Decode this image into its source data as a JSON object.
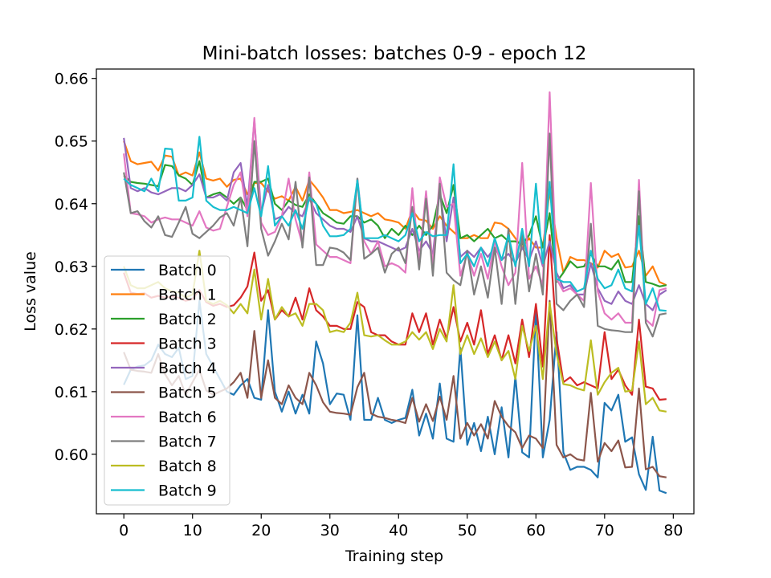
{
  "chart_data": {
    "type": "line",
    "title": "Mini-batch losses: batches 0-9 - epoch 12",
    "xlabel": "Training step",
    "ylabel": "Loss value",
    "xlim": [
      -4,
      83
    ],
    "ylim": [
      0.5905,
      0.6615
    ],
    "xticks": [
      "0",
      "10",
      "20",
      "30",
      "40",
      "50",
      "60",
      "70",
      "80"
    ],
    "yticks": [
      "0.60",
      "0.61",
      "0.62",
      "0.63",
      "0.64",
      "0.65",
      "0.66"
    ],
    "grid": false,
    "legend_position": "lower-left",
    "series": [
      {
        "name": "Batch 0",
        "color": "#1f77b4",
        "values": [
          0.6111,
          0.6135,
          0.614,
          0.6142,
          0.615,
          0.6175,
          0.616,
          0.6155,
          0.617,
          0.612,
          0.6125,
          0.6245,
          0.616,
          0.614,
          0.612,
          0.61,
          0.6095,
          0.611,
          0.612,
          0.609,
          0.6087,
          0.623,
          0.61,
          0.6068,
          0.61,
          0.6065,
          0.6095,
          0.6065,
          0.618,
          0.6145,
          0.608,
          0.6097,
          0.6095,
          0.6055,
          0.6222,
          0.6055,
          0.6055,
          0.609,
          0.6055,
          0.605,
          0.6055,
          0.6058,
          0.6103,
          0.603,
          0.6065,
          0.6025,
          0.6113,
          0.6025,
          0.602,
          0.617,
          0.6015,
          0.605,
          0.6005,
          0.606,
          0.6,
          0.6075,
          0.5995,
          0.6125,
          0.6003,
          0.5995,
          0.623,
          0.5995,
          0.6055,
          0.6195,
          0.6003,
          0.5975,
          0.598,
          0.598,
          0.5975,
          0.5963,
          0.6082,
          0.607,
          0.6095,
          0.602,
          0.6027,
          0.5968,
          0.5943,
          0.6028,
          0.5942,
          0.5938
        ]
      },
      {
        "name": "Batch 1",
        "color": "#ff7f0e",
        "values": [
          0.65,
          0.6468,
          0.6463,
          0.6465,
          0.6467,
          0.6453,
          0.6477,
          0.6475,
          0.6445,
          0.645,
          0.6445,
          0.6482,
          0.644,
          0.6437,
          0.644,
          0.6427,
          0.6438,
          0.644,
          0.6415,
          0.6433,
          0.6433,
          0.642,
          0.6408,
          0.6412,
          0.6405,
          0.6427,
          0.6405,
          0.6438,
          0.6425,
          0.641,
          0.639,
          0.639,
          0.6385,
          0.6387,
          0.639,
          0.6385,
          0.638,
          0.6385,
          0.6375,
          0.6373,
          0.637,
          0.636,
          0.639,
          0.6375,
          0.6373,
          0.636,
          0.638,
          0.6365,
          0.6355,
          0.6345,
          0.6345,
          0.635,
          0.6345,
          0.6345,
          0.637,
          0.6368,
          0.636,
          0.6345,
          0.633,
          0.6345,
          0.633,
          0.633,
          0.642,
          0.6345,
          0.629,
          0.6315,
          0.631,
          0.631,
          0.6305,
          0.6298,
          0.6325,
          0.6315,
          0.632,
          0.6298,
          0.63,
          0.6325,
          0.6285,
          0.63,
          0.6275,
          0.627
        ]
      },
      {
        "name": "Batch 2",
        "color": "#2ca02c",
        "values": [
          0.6445,
          0.6435,
          0.6433,
          0.6432,
          0.643,
          0.6428,
          0.6462,
          0.646,
          0.6445,
          0.644,
          0.643,
          0.6468,
          0.641,
          0.6415,
          0.6418,
          0.641,
          0.64,
          0.641,
          0.639,
          0.6435,
          0.6435,
          0.644,
          0.64,
          0.639,
          0.6405,
          0.6398,
          0.6395,
          0.6415,
          0.64,
          0.6385,
          0.6378,
          0.637,
          0.6368,
          0.638,
          0.638,
          0.637,
          0.6375,
          0.6365,
          0.6345,
          0.636,
          0.635,
          0.6365,
          0.635,
          0.6365,
          0.635,
          0.6365,
          0.6415,
          0.6385,
          0.643,
          0.6345,
          0.635,
          0.634,
          0.635,
          0.636,
          0.6345,
          0.635,
          0.634,
          0.634,
          0.6335,
          0.635,
          0.638,
          0.633,
          0.6385,
          0.6275,
          0.629,
          0.6308,
          0.6298,
          0.63,
          0.632,
          0.63,
          0.63,
          0.6295,
          0.631,
          0.6275,
          0.6275,
          0.638,
          0.6275,
          0.6272,
          0.6268,
          0.627
        ]
      },
      {
        "name": "Batch 3",
        "color": "#d62728",
        "values": [
          0.629,
          0.6258,
          0.6256,
          0.6257,
          0.625,
          0.6253,
          0.625,
          0.6252,
          0.625,
          0.6245,
          0.6248,
          0.6262,
          0.6243,
          0.6237,
          0.624,
          0.6235,
          0.6238,
          0.625,
          0.6268,
          0.6322,
          0.6245,
          0.6262,
          0.6215,
          0.623,
          0.622,
          0.625,
          0.6215,
          0.6265,
          0.623,
          0.622,
          0.6205,
          0.6205,
          0.62,
          0.62,
          0.6243,
          0.6235,
          0.6195,
          0.619,
          0.619,
          0.618,
          0.6175,
          0.6175,
          0.6225,
          0.6195,
          0.6225,
          0.6175,
          0.6215,
          0.6185,
          0.6235,
          0.618,
          0.621,
          0.6175,
          0.623,
          0.616,
          0.619,
          0.615,
          0.619,
          0.6145,
          0.6215,
          0.6155,
          0.624,
          0.614,
          0.635,
          0.6185,
          0.6115,
          0.6123,
          0.611,
          0.6115,
          0.611,
          0.6105,
          0.6195,
          0.612,
          0.6135,
          0.611,
          0.6095,
          0.6215,
          0.6108,
          0.6105,
          0.6087,
          0.6088
        ]
      },
      {
        "name": "Batch 4",
        "color": "#9467bd",
        "values": [
          0.6505,
          0.6425,
          0.642,
          0.6425,
          0.6418,
          0.6415,
          0.642,
          0.6425,
          0.6425,
          0.642,
          0.643,
          0.6447,
          0.641,
          0.641,
          0.6415,
          0.6405,
          0.645,
          0.6465,
          0.6395,
          0.6533,
          0.6385,
          0.643,
          0.6375,
          0.638,
          0.6395,
          0.6385,
          0.638,
          0.6408,
          0.6385,
          0.6375,
          0.6365,
          0.636,
          0.636,
          0.6355,
          0.638,
          0.6345,
          0.634,
          0.634,
          0.6335,
          0.633,
          0.6325,
          0.633,
          0.636,
          0.6325,
          0.634,
          0.632,
          0.642,
          0.634,
          0.641,
          0.6315,
          0.6325,
          0.6315,
          0.633,
          0.6315,
          0.633,
          0.631,
          0.632,
          0.6305,
          0.633,
          0.631,
          0.634,
          0.63,
          0.634,
          0.629,
          0.6265,
          0.627,
          0.6255,
          0.6255,
          0.6305,
          0.6265,
          0.6245,
          0.624,
          0.626,
          0.6245,
          0.624,
          0.627,
          0.624,
          0.623,
          0.6255,
          0.6262
        ]
      },
      {
        "name": "Batch 5",
        "color": "#8c564b",
        "values": [
          0.6163,
          0.6135,
          0.6133,
          0.6132,
          0.613,
          0.616,
          0.6128,
          0.611,
          0.6125,
          0.6095,
          0.6115,
          0.6135,
          0.6102,
          0.6095,
          0.61,
          0.6105,
          0.6115,
          0.613,
          0.609,
          0.6197,
          0.609,
          0.615,
          0.609,
          0.608,
          0.611,
          0.609,
          0.608,
          0.613,
          0.611,
          0.6083,
          0.6068,
          0.6066,
          0.6065,
          0.6063,
          0.6107,
          0.613,
          0.6065,
          0.606,
          0.6058,
          0.6055,
          0.6053,
          0.605,
          0.609,
          0.6052,
          0.608,
          0.6053,
          0.6092,
          0.6055,
          0.6125,
          0.6025,
          0.605,
          0.603,
          0.6048,
          0.6025,
          0.6085,
          0.606,
          0.6045,
          0.6035,
          0.601,
          0.603,
          0.6025,
          0.601,
          0.6245,
          0.6015,
          0.5995,
          0.6,
          0.5992,
          0.599,
          0.6098,
          0.5988,
          0.6018,
          0.6005,
          0.6022,
          0.5979,
          0.598,
          0.6105,
          0.5976,
          0.598,
          0.5965,
          0.5963
        ]
      },
      {
        "name": "Batch 6",
        "color": "#e377c2",
        "values": [
          0.648,
          0.6385,
          0.6383,
          0.638,
          0.637,
          0.6375,
          0.6378,
          0.6375,
          0.6375,
          0.637,
          0.6365,
          0.6388,
          0.6362,
          0.6357,
          0.636,
          0.6395,
          0.643,
          0.645,
          0.638,
          0.6537,
          0.637,
          0.635,
          0.6355,
          0.638,
          0.644,
          0.6375,
          0.6335,
          0.645,
          0.6335,
          0.6325,
          0.6315,
          0.6315,
          0.631,
          0.6305,
          0.644,
          0.634,
          0.632,
          0.634,
          0.63,
          0.6305,
          0.63,
          0.629,
          0.6425,
          0.6305,
          0.642,
          0.63,
          0.6442,
          0.6395,
          0.64,
          0.6285,
          0.632,
          0.6285,
          0.632,
          0.628,
          0.634,
          0.63,
          0.627,
          0.629,
          0.6465,
          0.628,
          0.63,
          0.627,
          0.6578,
          0.628,
          0.626,
          0.6265,
          0.6255,
          0.6245,
          0.6433,
          0.626,
          0.6225,
          0.6215,
          0.6225,
          0.621,
          0.621,
          0.6438,
          0.6215,
          0.6205,
          0.6262,
          0.6265
        ]
      },
      {
        "name": "Batch 7",
        "color": "#7f7f7f",
        "values": [
          0.645,
          0.6385,
          0.6388,
          0.6372,
          0.6362,
          0.638,
          0.635,
          0.6347,
          0.637,
          0.6395,
          0.6352,
          0.6345,
          0.6355,
          0.6365,
          0.6378,
          0.6385,
          0.6365,
          0.641,
          0.6332,
          0.65,
          0.636,
          0.6317,
          0.634,
          0.6368,
          0.6343,
          0.6435,
          0.633,
          0.6442,
          0.6302,
          0.6302,
          0.633,
          0.6328,
          0.6322,
          0.631,
          0.644,
          0.6312,
          0.632,
          0.633,
          0.629,
          0.632,
          0.633,
          0.6305,
          0.6395,
          0.6295,
          0.6408,
          0.6285,
          0.6432,
          0.629,
          0.6278,
          0.627,
          0.6325,
          0.6255,
          0.63,
          0.625,
          0.633,
          0.624,
          0.636,
          0.624,
          0.635,
          0.626,
          0.632,
          0.6255,
          0.6512,
          0.624,
          0.623,
          0.6245,
          0.6255,
          0.6235,
          0.6368,
          0.6205,
          0.62,
          0.6198,
          0.6197,
          0.6195,
          0.6195,
          0.642,
          0.621,
          0.6188,
          0.6223,
          0.6225
        ]
      },
      {
        "name": "Batch 8",
        "color": "#bcbd22",
        "values": [
          0.63,
          0.627,
          0.6265,
          0.6265,
          0.627,
          0.6275,
          0.6265,
          0.626,
          0.6258,
          0.625,
          0.6255,
          0.6325,
          0.6245,
          0.624,
          0.6245,
          0.6238,
          0.6225,
          0.624,
          0.6225,
          0.6295,
          0.6215,
          0.628,
          0.6215,
          0.6235,
          0.622,
          0.6225,
          0.6205,
          0.624,
          0.624,
          0.623,
          0.6195,
          0.6198,
          0.6195,
          0.621,
          0.6258,
          0.619,
          0.6188,
          0.619,
          0.6182,
          0.6175,
          0.6175,
          0.618,
          0.6195,
          0.6183,
          0.6195,
          0.6168,
          0.62,
          0.618,
          0.627,
          0.616,
          0.619,
          0.616,
          0.6185,
          0.6155,
          0.618,
          0.615,
          0.6165,
          0.612,
          0.6205,
          0.6165,
          0.6205,
          0.612,
          0.6242,
          0.616,
          0.6112,
          0.611,
          0.6105,
          0.6102,
          0.6182,
          0.6095,
          0.6115,
          0.613,
          0.6138,
          0.61,
          0.6102,
          0.618,
          0.608,
          0.609,
          0.607,
          0.6068
        ]
      },
      {
        "name": "Batch 9",
        "color": "#17becf",
        "values": [
          0.644,
          0.643,
          0.6425,
          0.642,
          0.644,
          0.642,
          0.6488,
          0.6487,
          0.6405,
          0.6405,
          0.641,
          0.6507,
          0.6405,
          0.6395,
          0.639,
          0.639,
          0.6395,
          0.639,
          0.6385,
          0.6425,
          0.638,
          0.646,
          0.6365,
          0.638,
          0.6365,
          0.639,
          0.636,
          0.641,
          0.64,
          0.6365,
          0.6348,
          0.6348,
          0.635,
          0.636,
          0.6437,
          0.6345,
          0.6345,
          0.6345,
          0.635,
          0.6345,
          0.634,
          0.635,
          0.6385,
          0.634,
          0.6355,
          0.6348,
          0.635,
          0.635,
          0.6463,
          0.6305,
          0.632,
          0.63,
          0.633,
          0.63,
          0.6345,
          0.631,
          0.635,
          0.63,
          0.636,
          0.63,
          0.6432,
          0.6305,
          0.6435,
          0.628,
          0.6275,
          0.6275,
          0.626,
          0.6265,
          0.6325,
          0.628,
          0.6265,
          0.627,
          0.6295,
          0.6265,
          0.626,
          0.6365,
          0.624,
          0.6265,
          0.623,
          0.6229
        ]
      }
    ]
  }
}
